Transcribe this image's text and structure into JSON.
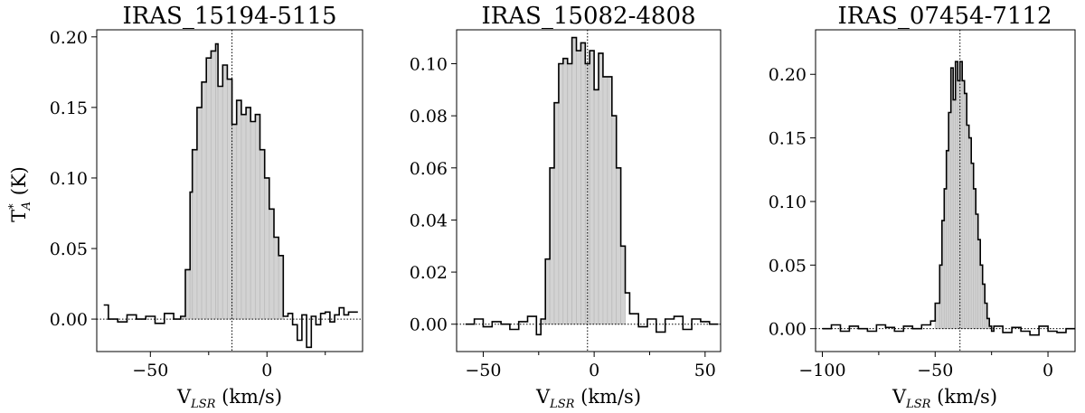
{
  "chart_data": [
    {
      "type": "histogram-step",
      "title": "IRAS_15194-5115",
      "ylabel": "T*A (K)",
      "xlabel": "VLSR (km/s)",
      "xlim": [
        -73,
        41
      ],
      "ylim": [
        -0.023,
        0.205
      ],
      "xticks": [
        -50,
        0
      ],
      "xtick_labels": [
        "−50",
        "0"
      ],
      "minor_xticks": [
        -25,
        25
      ],
      "yticks": [
        0,
        0.05,
        0.1,
        0.15,
        0.2
      ],
      "ytick_labels": [
        "0.00",
        "0.05",
        "0.10",
        "0.15",
        "0.20"
      ],
      "center_line": -15,
      "fill_range": [
        -37,
        8
      ],
      "series": [
        {
          "x": [
            -70,
            -68,
            -64,
            -60,
            -56,
            -52,
            -48,
            -44,
            -40,
            -37,
            -35,
            -33,
            -32,
            -30,
            -28,
            -26,
            -24,
            -22,
            -21,
            -19,
            -17,
            -15,
            -13,
            -11,
            -9,
            -7,
            -5,
            -3,
            -1,
            1,
            3,
            5,
            7,
            9,
            11,
            13,
            15,
            17,
            19,
            21,
            23,
            25,
            27,
            29,
            31,
            33,
            35,
            37
          ],
          "y": [
            0.01,
            0.0,
            -0.002,
            0.003,
            0.0,
            0.002,
            -0.003,
            0.004,
            0.0,
            0.002,
            0.035,
            0.09,
            0.12,
            0.15,
            0.168,
            0.185,
            0.19,
            0.195,
            0.165,
            0.18,
            0.17,
            0.138,
            0.155,
            0.145,
            0.15,
            0.14,
            0.145,
            0.12,
            0.1,
            0.078,
            0.058,
            0.045,
            0.002,
            0.004,
            -0.004,
            -0.015,
            0.003,
            -0.02,
            0.002,
            -0.004,
            0.004,
            0.005,
            -0.002,
            0.003,
            0.008,
            0.003,
            0.005,
            0.005
          ]
        }
      ]
    },
    {
      "type": "histogram-step",
      "title": "IRAS_15082-4808",
      "ylabel": "",
      "xlabel": "VLSR (km/s)",
      "xlim": [
        -62,
        57
      ],
      "ylim": [
        -0.0105,
        0.113
      ],
      "xticks": [
        -50,
        0,
        50
      ],
      "xtick_labels": [
        "−50",
        "0",
        "50"
      ],
      "minor_xticks": [
        -25,
        25
      ],
      "yticks": [
        0,
        0.02,
        0.04,
        0.06,
        0.08,
        0.1
      ],
      "ytick_labels": [
        "0.00",
        "0.02",
        "0.04",
        "0.06",
        "0.08",
        "0.10"
      ],
      "center_line": -3,
      "fill_range": [
        -24,
        14
      ],
      "series": [
        {
          "x": [
            -58,
            -54,
            -50,
            -46,
            -42,
            -38,
            -34,
            -30,
            -26,
            -24,
            -22,
            -20,
            -18,
            -16,
            -14,
            -12,
            -10,
            -8,
            -6,
            -4,
            -2,
            0,
            2,
            4,
            6,
            8,
            10,
            12,
            14,
            16,
            20,
            24,
            28,
            32,
            36,
            40,
            44,
            48,
            52
          ],
          "y": [
            0.0,
            0.002,
            -0.001,
            0.001,
            0.0,
            -0.002,
            0.001,
            0.003,
            -0.004,
            0.002,
            0.025,
            0.06,
            0.085,
            0.1,
            0.102,
            0.1,
            0.11,
            0.105,
            0.108,
            0.1,
            0.105,
            0.09,
            0.104,
            0.095,
            0.095,
            0.08,
            0.06,
            0.03,
            0.012,
            0.004,
            -0.001,
            0.002,
            -0.003,
            0.002,
            0.003,
            -0.002,
            0.002,
            0.001,
            0.0
          ]
        }
      ]
    },
    {
      "type": "histogram-step",
      "title": "IRAS_07454-7112",
      "ylabel": "",
      "xlabel": "VLSR (km/s)",
      "xlim": [
        -103,
        12
      ],
      "ylim": [
        -0.018,
        0.235
      ],
      "xticks": [
        -100,
        -50,
        0
      ],
      "xtick_labels": [
        "−100",
        "−50",
        "0"
      ],
      "minor_xticks": [
        -75,
        -25
      ],
      "yticks": [
        0,
        0.05,
        0.1,
        0.15,
        0.2
      ],
      "ytick_labels": [
        "0.00",
        "0.05",
        "0.10",
        "0.15",
        "0.20"
      ],
      "center_line": -39,
      "fill_range": [
        -51,
        -25
      ],
      "series": [
        {
          "x": [
            -100,
            -96,
            -92,
            -88,
            -84,
            -80,
            -76,
            -72,
            -68,
            -64,
            -60,
            -56,
            -52,
            -50,
            -48,
            -47,
            -46,
            -45,
            -44,
            -43,
            -42,
            -41,
            -40,
            -39,
            -38,
            -37,
            -36,
            -35,
            -34,
            -33,
            -32,
            -31,
            -30,
            -29,
            -28,
            -27,
            -26,
            -25,
            -24,
            -20,
            -16,
            -12,
            -8,
            -4,
            0,
            4,
            8
          ],
          "y": [
            0.0,
            0.003,
            -0.002,
            0.002,
            0.0,
            -0.002,
            0.003,
            0.001,
            -0.002,
            0.002,
            0.0,
            0.003,
            0.006,
            0.02,
            0.05,
            0.085,
            0.11,
            0.14,
            0.17,
            0.205,
            0.18,
            0.21,
            0.195,
            0.21,
            0.195,
            0.185,
            0.16,
            0.15,
            0.13,
            0.11,
            0.09,
            0.07,
            0.05,
            0.035,
            0.02,
            0.008,
            0.002,
            -0.002,
            0.002,
            -0.003,
            0.001,
            -0.002,
            -0.005,
            0.002,
            -0.002,
            -0.003,
            0.0
          ]
        }
      ]
    }
  ]
}
